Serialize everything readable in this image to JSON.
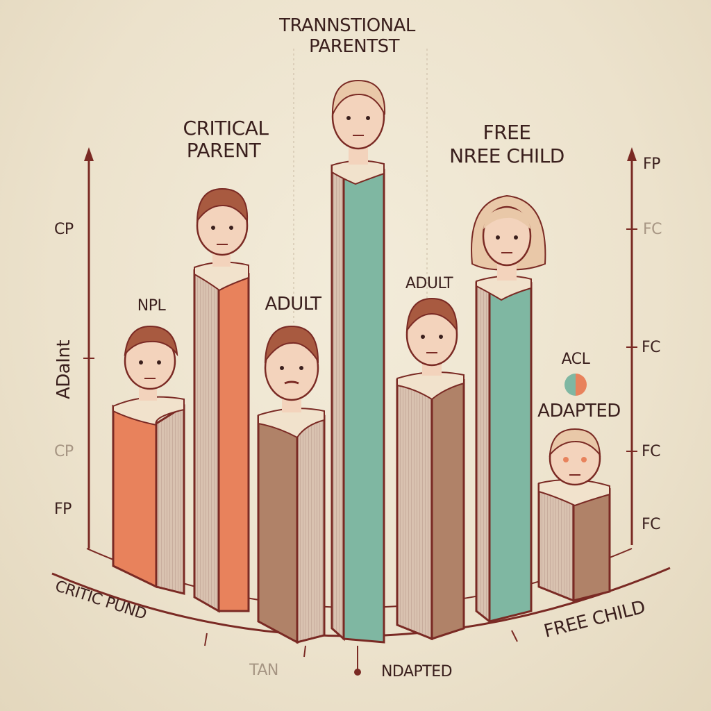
{
  "colors": {
    "outline": "#7a2a24",
    "coral": "#e8825c",
    "coral_side": "#d5a898",
    "teal": "#7fb7a2",
    "brown": "#b08268",
    "brown_side": "#c8ac98",
    "collar": "#f1e2cc",
    "skin": "#f3d3bc",
    "hair_dark": "#a85a40",
    "hair_light": "#e9c8a8",
    "background": "#ede4d0"
  },
  "labels": {
    "title_line1": "TRANNSTIONAL",
    "title_line2": "PARENTST",
    "critical_line1": "CRITICAL",
    "critical_line2": "PARENT",
    "free_line1": "FREE",
    "free_line2": "NREE CHILD",
    "npl": "NPL",
    "adult_center": "ADULT",
    "adult_right": "ADULT",
    "acl": "ACL",
    "adapted": "ADAPTED",
    "left_vertical": "ADaInt",
    "bottom_left": "CRITIC PUND",
    "bottom_right": "FREE CHILD",
    "bottom_center": "NDAPTED",
    "bottom_faint": "TAN"
  },
  "left_axis": [
    "CP",
    "CP",
    "FP"
  ],
  "right_axis": [
    "FP",
    "FC",
    "FC",
    "FC",
    "FC"
  ],
  "figures": [
    {
      "name": "npl-figure",
      "color": "coral",
      "hair": "hair_dark"
    },
    {
      "name": "critical-parent-figure",
      "color": "coral",
      "hair": "hair_dark"
    },
    {
      "name": "adult-figure",
      "color": "brown",
      "hair": "hair_dark"
    },
    {
      "name": "transitional-parent-figure",
      "color": "teal",
      "hair": "hair_light"
    },
    {
      "name": "adult-right-figure",
      "color": "brown",
      "hair": "hair_dark"
    },
    {
      "name": "free-child-figure",
      "color": "teal",
      "hair": "hair_light"
    },
    {
      "name": "adapted-child-figure",
      "color": "brown",
      "hair": "hair_light"
    }
  ]
}
